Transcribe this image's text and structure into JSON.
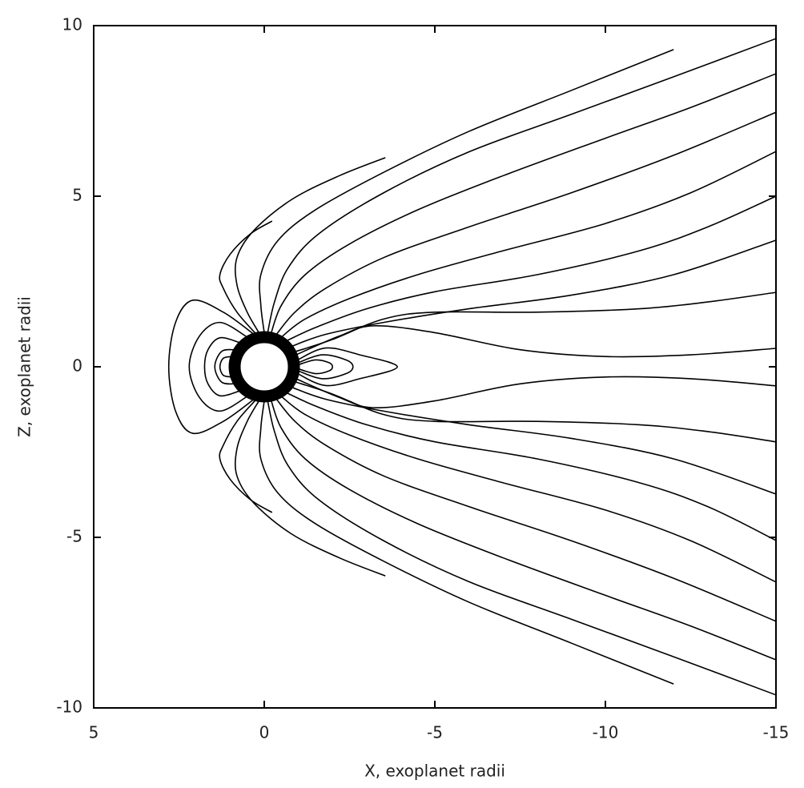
{
  "chart_data": {
    "type": "line",
    "x_label": "X, exoplanet radii",
    "y_label": "Z, exoplanet radii",
    "xlim": [
      5,
      -15
    ],
    "ylim": [
      -10,
      10
    ],
    "xticks": [
      5,
      0,
      -5,
      -10,
      -15
    ],
    "yticks": [
      -10,
      -5,
      0,
      5,
      10
    ],
    "color": "#000000",
    "series": [
      {
        "x": [
          0.25,
          0.8,
          1.2,
          1.3,
          1.0,
          0.4,
          -0.23
        ],
        "values": [
          0.97,
          1.6,
          2.3,
          2.7,
          3.3,
          3.9,
          4.27
        ]
      },
      {
        "x": [
          0.15,
          0.5,
          0.8,
          0.8,
          0.3,
          -0.8,
          -2.2,
          -3.55
        ],
        "values": [
          0.99,
          1.6,
          2.4,
          3.2,
          4.0,
          4.9,
          5.6,
          6.13
        ]
      },
      {
        "x": [
          0,
          0.1,
          0.1,
          -0.4,
          -1.5,
          -3.5,
          -6,
          -9,
          -12
        ],
        "values": [
          1,
          1.8,
          2.7,
          3.7,
          4.6,
          5.7,
          6.9,
          8.1,
          9.3
        ]
      },
      {
        "x": [
          -0.1,
          -0.3,
          -0.7,
          -1.6,
          -3.5,
          -6,
          -9,
          -12,
          -15
        ],
        "values": [
          1,
          1.9,
          2.9,
          3.9,
          5.1,
          6.3,
          7.4,
          8.5,
          9.62
        ]
      },
      {
        "x": [
          -0.2,
          -0.5,
          -1.2,
          -2.5,
          -4.5,
          -7,
          -10,
          -12.5,
          -15
        ],
        "values": [
          0.98,
          1.8,
          2.7,
          3.6,
          4.6,
          5.6,
          6.7,
          7.6,
          8.59
        ]
      },
      {
        "x": [
          -0.35,
          -0.9,
          -1.8,
          -3.5,
          -6,
          -9,
          -12,
          -15
        ],
        "values": [
          0.94,
          1.6,
          2.3,
          3.2,
          4.1,
          5.1,
          6.2,
          7.46
        ]
      },
      {
        "x": [
          -0.5,
          -1.2,
          -2.5,
          -4.5,
          -7,
          -10,
          -12.5,
          -15
        ],
        "values": [
          0.87,
          1.4,
          2.0,
          2.7,
          3.4,
          4.2,
          5.1,
          6.31
        ]
      },
      {
        "x": [
          -0.65,
          -1.5,
          -3,
          -5,
          -8,
          -11,
          -13,
          -15
        ],
        "values": [
          0.76,
          1.15,
          1.7,
          2.2,
          2.7,
          3.4,
          4.1,
          5.0
        ]
      },
      {
        "x": [
          -0.8,
          -1.8,
          -3.5,
          -6,
          -9,
          -12,
          -15
        ],
        "values": [
          0.6,
          0.95,
          1.3,
          1.7,
          2.1,
          2.7,
          3.71
        ]
      },
      {
        "x": [
          -0.9,
          -2,
          -3.5,
          -5,
          -8,
          -11,
          -13,
          -15
        ],
        "values": [
          0.44,
          0.8,
          1.4,
          1.6,
          1.6,
          1.7,
          1.9,
          2.18
        ]
      },
      {
        "x": [
          -0.93,
          -2.2,
          -3.2,
          -5,
          -7.5,
          -10,
          -12.5,
          -15
        ],
        "values": [
          0.35,
          0.9,
          1.2,
          1.0,
          0.5,
          0.3,
          0.35,
          0.54
        ]
      },
      {
        "x": [
          0.25,
          0.8,
          1.2,
          1.3,
          1.0,
          0.4,
          -0.23
        ],
        "values": [
          -0.97,
          -1.6,
          -2.3,
          -2.7,
          -3.3,
          -3.9,
          -4.27
        ]
      },
      {
        "x": [
          0.15,
          0.5,
          0.8,
          0.8,
          0.3,
          -0.8,
          -2.2,
          -3.55
        ],
        "values": [
          -0.99,
          -1.6,
          -2.4,
          -3.2,
          -4.0,
          -4.9,
          -5.6,
          -6.13
        ]
      },
      {
        "x": [
          0,
          0.1,
          0.1,
          -0.4,
          -1.5,
          -3.5,
          -6,
          -9,
          -12
        ],
        "values": [
          -1,
          -1.8,
          -2.7,
          -3.7,
          -4.6,
          -5.7,
          -6.9,
          -8.1,
          -9.3
        ]
      },
      {
        "x": [
          -0.1,
          -0.3,
          -0.7,
          -1.6,
          -3.5,
          -6,
          -9,
          -12,
          -15
        ],
        "values": [
          -1,
          -1.9,
          -2.9,
          -3.9,
          -5.1,
          -6.3,
          -7.4,
          -8.5,
          -9.62
        ]
      },
      {
        "x": [
          -0.2,
          -0.5,
          -1.2,
          -2.5,
          -4.5,
          -7,
          -10,
          -12.5,
          -15
        ],
        "values": [
          -0.98,
          -1.8,
          -2.7,
          -3.6,
          -4.6,
          -5.6,
          -6.7,
          -7.6,
          -8.59
        ]
      },
      {
        "x": [
          -0.35,
          -0.9,
          -1.8,
          -3.5,
          -6,
          -9,
          -12,
          -15
        ],
        "values": [
          -0.94,
          -1.6,
          -2.3,
          -3.2,
          -4.1,
          -5.1,
          -6.2,
          -7.46
        ]
      },
      {
        "x": [
          -0.5,
          -1.2,
          -2.5,
          -4.5,
          -7,
          -10,
          -12.5,
          -15
        ],
        "values": [
          -0.87,
          -1.4,
          -2.0,
          -2.7,
          -3.4,
          -4.2,
          -5.1,
          -6.31
        ]
      },
      {
        "x": [
          -0.65,
          -1.5,
          -3,
          -5,
          -8,
          -11,
          -13,
          -15
        ],
        "values": [
          -0.76,
          -1.15,
          -1.7,
          -2.2,
          -2.7,
          -3.4,
          -4.1,
          -5.09
        ]
      },
      {
        "x": [
          -0.8,
          -1.8,
          -3.5,
          -6,
          -9,
          -12,
          -15
        ],
        "values": [
          -0.6,
          -0.95,
          -1.3,
          -1.7,
          -2.1,
          -2.7,
          -3.73
        ]
      },
      {
        "x": [
          -0.9,
          -2,
          -3.5,
          -5,
          -8,
          -11,
          -13,
          -15
        ],
        "values": [
          -0.44,
          -0.8,
          -1.4,
          -1.6,
          -1.6,
          -1.7,
          -1.9,
          -2.2
        ]
      },
      {
        "x": [
          -0.93,
          -2.2,
          -3.2,
          -5,
          -7.5,
          -10,
          -12.5,
          -15
        ],
        "values": [
          -0.35,
          -0.9,
          -1.2,
          -1.0,
          -0.5,
          -0.3,
          -0.35,
          -0.56
        ]
      },
      {
        "x": [
          -0.97,
          -1.8,
          -2.8,
          -3.9,
          -2.8,
          -1.8,
          -0.97
        ],
        "values": [
          0.2,
          0.55,
          0.35,
          0,
          -0.35,
          -0.55,
          -0.2
        ]
      },
      {
        "x": [
          -0.99,
          -1.7,
          -2.4,
          -2.6,
          -2.4,
          -1.7,
          -0.99
        ],
        "values": [
          0.12,
          0.35,
          0.2,
          0,
          -0.2,
          -0.35,
          -0.12
        ]
      },
      {
        "x": [
          -1,
          -1.5,
          -1.9,
          -2.0,
          -1.9,
          -1.5,
          -1
        ],
        "values": [
          0.06,
          0.2,
          0.12,
          0,
          -0.12,
          -0.2,
          -0.06
        ]
      },
      {
        "x": [
          0.3,
          1.2,
          2.1,
          2.6,
          2.8,
          2.6,
          2.1,
          1.2,
          0.3
        ],
        "values": [
          0.95,
          1.6,
          1.95,
          1.3,
          0,
          -1.3,
          -1.95,
          -1.6,
          -0.95
        ]
      },
      {
        "x": [
          0.5,
          1.3,
          1.9,
          2.2,
          1.9,
          1.3,
          0.5
        ],
        "values": [
          0.87,
          1.3,
          0.9,
          0,
          -0.9,
          -1.3,
          -0.87
        ]
      },
      {
        "x": [
          0.7,
          1.3,
          1.65,
          1.75,
          1.65,
          1.3,
          0.7
        ],
        "values": [
          0.7,
          0.85,
          0.5,
          0,
          -0.5,
          -0.85,
          -0.7
        ]
      },
      {
        "x": [
          0.85,
          1.25,
          1.45,
          1.25,
          0.85
        ],
        "values": [
          0.5,
          0.45,
          0,
          -0.45,
          -0.5
        ]
      },
      {
        "x": [
          0.95,
          1.2,
          1.3,
          1.2,
          0.95
        ],
        "values": [
          0.3,
          0.25,
          0,
          -0.25,
          -0.3
        ]
      }
    ]
  }
}
